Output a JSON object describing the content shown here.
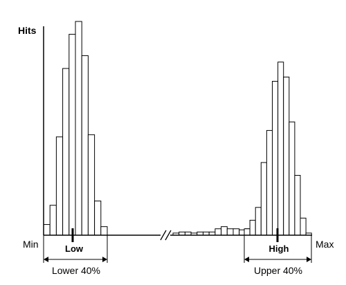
{
  "chart_data": {
    "type": "bar",
    "ylabel": "Hits",
    "x_axis_labels": {
      "min": "Min",
      "max": "Max"
    },
    "axis_break": true,
    "ylim": [
      0,
      100
    ],
    "series": [
      {
        "group": "lower",
        "values": [
          5,
          14,
          46,
          78,
          94,
          100,
          84,
          47,
          16,
          4
        ]
      },
      {
        "group": "middle",
        "values": [
          1,
          1.5,
          1.5,
          1,
          1.5,
          1.5,
          1.5,
          3,
          4,
          3,
          3,
          2.5,
          3,
          3.5
        ]
      },
      {
        "group": "upper",
        "values": [
          3,
          7,
          13,
          34,
          49,
          72,
          81,
          74,
          53,
          28,
          8,
          1
        ]
      }
    ],
    "markers": [
      {
        "label": "Low",
        "group": "lower",
        "position_bin": 4
      },
      {
        "label": "High",
        "group": "upper",
        "position_bin": 7
      }
    ],
    "ranges": [
      {
        "label": "Lower 40%"
      },
      {
        "label": "Upper 40%"
      }
    ]
  }
}
